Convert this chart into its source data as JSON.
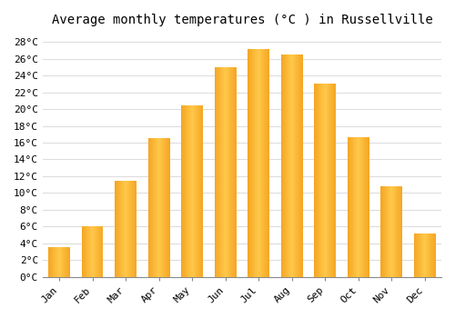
{
  "title": "Average monthly temperatures (°C ) in Russellville",
  "months": [
    "Jan",
    "Feb",
    "Mar",
    "Apr",
    "May",
    "Jun",
    "Jul",
    "Aug",
    "Sep",
    "Oct",
    "Nov",
    "Dec"
  ],
  "values": [
    3.5,
    6.0,
    11.5,
    16.5,
    20.5,
    25.0,
    27.2,
    26.5,
    23.0,
    16.7,
    10.8,
    5.2
  ],
  "bar_color_outer": "#F5A623",
  "bar_color_inner": "#FFC84A",
  "ylim": [
    0,
    29
  ],
  "yticks": [
    0,
    2,
    4,
    6,
    8,
    10,
    12,
    14,
    16,
    18,
    20,
    22,
    24,
    26,
    28
  ],
  "ytick_labels": [
    "0°C",
    "2°C",
    "4°C",
    "6°C",
    "8°C",
    "10°C",
    "12°C",
    "14°C",
    "16°C",
    "18°C",
    "20°C",
    "22°C",
    "24°C",
    "26°C",
    "28°C"
  ],
  "background_color": "#FFFFFF",
  "grid_color": "#DDDDDD",
  "title_fontsize": 10,
  "tick_fontsize": 8,
  "bar_width": 0.65
}
